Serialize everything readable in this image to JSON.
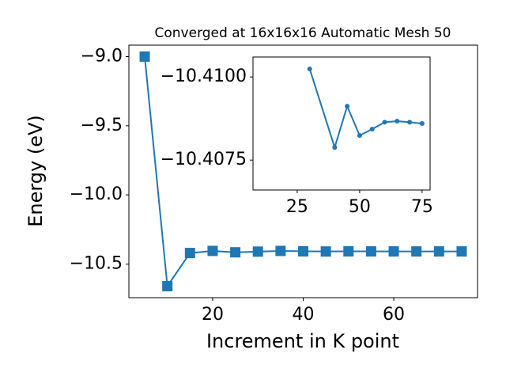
{
  "chart_data": [
    {
      "type": "line",
      "title": "Converged at 16x16x16 Automatic Mesh 50",
      "x_label": "Increment in K point",
      "y_label": "Energy (eV)",
      "x": [
        5,
        10,
        15,
        20,
        25,
        30,
        35,
        40,
        45,
        50,
        55,
        60,
        65,
        70,
        75
      ],
      "series": [
        {
          "name": "energy",
          "color": "#1f77b4",
          "marker": "square",
          "values": [
            -9.0,
            -10.66,
            -10.42,
            -10.405,
            -10.415,
            -10.41,
            -10.405,
            -10.4079,
            -10.4091,
            -10.4082,
            -10.4084,
            -10.4086,
            -10.4087,
            -10.4086,
            -10.4086
          ]
        }
      ],
      "xlim": [
        1.5,
        78.5
      ],
      "xticks": [
        20,
        40,
        60
      ],
      "ylim": [
        -10.743,
        -8.917
      ],
      "yticks": [
        {
          "value": -9.0,
          "label": "−9.0"
        },
        {
          "value": -9.5,
          "label": "−9.5"
        },
        {
          "value": -10.0,
          "label": "−10.0"
        },
        {
          "value": -10.5,
          "label": "−10.5"
        }
      ]
    },
    {
      "type": "line",
      "x": [
        30,
        40,
        45,
        50,
        55,
        60,
        65,
        70,
        75
      ],
      "series": [
        {
          "name": "energy",
          "color": "#1f77b4",
          "marker": "circle",
          "values": [
            -10.41024,
            -10.40788,
            -10.40912,
            -10.40824,
            -10.40843,
            -10.40864,
            -10.40867,
            -10.40864,
            -10.4086
          ]
        }
      ],
      "xlim": [
        7.3,
        78.2
      ],
      "xticks": [
        25,
        50,
        75
      ],
      "ylim": [
        -10.4066,
        -10.4106
      ],
      "yticks": [
        {
          "value": -10.41,
          "label": "−10.4100"
        },
        {
          "value": -10.4075,
          "label": "−10.4075"
        }
      ]
    }
  ]
}
